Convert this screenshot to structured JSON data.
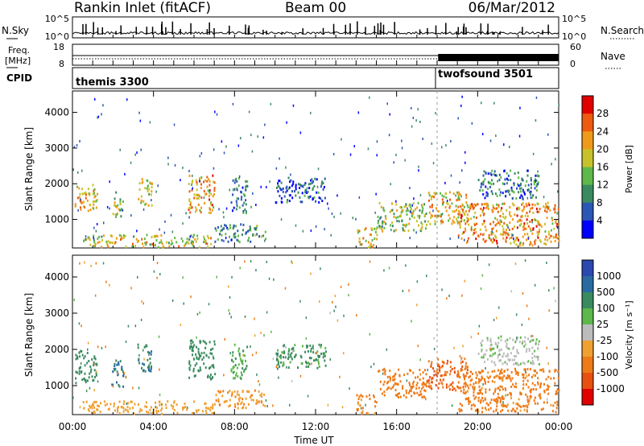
{
  "header": {
    "station": "Rankin Inlet (fitACF)",
    "beam": "Beam 00",
    "date": "06/Mar/2012"
  },
  "noise_panel": {
    "left_label": "N.Sky",
    "right_label": "N.Search",
    "left_ticks": [
      "10^5",
      "10^0"
    ],
    "right_ticks": [
      "10^5",
      "10^0"
    ]
  },
  "freq_panel": {
    "left_label_line1": "Freq.",
    "left_label_line2": "[MHz]",
    "right_label": "Nave",
    "left_ticks": [
      "18",
      "8"
    ],
    "right_ticks": [
      "60",
      "0"
    ]
  },
  "cpid_panel": {
    "label": "CPID",
    "programs": [
      {
        "name": "themis 3300",
        "start_hour": 0.0
      },
      {
        "name": "twofsound 3501",
        "start_hour": 18.0
      }
    ]
  },
  "colors": {
    "power_scale": [
      "#0000ff",
      "#2a56b5",
      "#3a8a5f",
      "#5fb84a",
      "#c8c22a",
      "#f09a1a",
      "#ee5a10",
      "#e00000"
    ],
    "velocity_scale": [
      "#2a48b0",
      "#2a6aa0",
      "#3a8a5f",
      "#5cb84a",
      "#bcbcbc",
      "#f0a030",
      "#ee7a18",
      "#e85010",
      "#e00000"
    ]
  },
  "chart_data": [
    {
      "type": "heatmap",
      "name": "power",
      "xlabel": "",
      "ylabel": "Slant Range [km]",
      "colorbar_label": "Power [dB]",
      "colorbar_ticks": [
        "28",
        "24",
        "20",
        "16",
        "12",
        "8",
        "4"
      ],
      "y_ticks": [
        "4000",
        "3000",
        "2000",
        "1000"
      ],
      "x_ticks": [
        "00:00",
        "04:00",
        "08:00",
        "12:00",
        "16:00",
        "20:00",
        "00:00"
      ],
      "x_range_hours": [
        0,
        24
      ],
      "y_range_km": [
        200,
        4600
      ],
      "clusters": [
        {
          "t0": 0.1,
          "t1": 1.2,
          "r0": 1200,
          "r1": 2000,
          "v": 20
        },
        {
          "t0": 1.9,
          "t1": 2.5,
          "r0": 1100,
          "r1": 1800,
          "v": 14
        },
        {
          "t0": 3.2,
          "t1": 3.9,
          "r0": 1400,
          "r1": 2200,
          "v": 18
        },
        {
          "t0": 5.7,
          "t1": 7.0,
          "r0": 1200,
          "r1": 2300,
          "v": 22
        },
        {
          "t0": 7.8,
          "t1": 8.6,
          "r0": 1200,
          "r1": 2200,
          "v": 8
        },
        {
          "t0": 10.0,
          "t1": 12.5,
          "r0": 1500,
          "r1": 2200,
          "v": 6
        },
        {
          "t0": 0.5,
          "t1": 7.0,
          "r0": 250,
          "r1": 600,
          "v": 18
        },
        {
          "t0": 7.0,
          "t1": 9.5,
          "r0": 400,
          "r1": 900,
          "v": 10
        },
        {
          "t0": 14.0,
          "t1": 15.0,
          "r0": 250,
          "r1": 800,
          "v": 20
        },
        {
          "t0": 15.0,
          "t1": 17.5,
          "r0": 700,
          "r1": 1500,
          "v": 16
        },
        {
          "t0": 17.5,
          "t1": 19.5,
          "r0": 900,
          "r1": 1800,
          "v": 20
        },
        {
          "t0": 19.0,
          "t1": 24.0,
          "r0": 300,
          "r1": 1500,
          "v": 22
        },
        {
          "t0": 20.0,
          "t1": 23.0,
          "r0": 1600,
          "r1": 2400,
          "v": 8
        }
      ]
    },
    {
      "type": "heatmap",
      "name": "velocity",
      "xlabel": "Time UT",
      "ylabel": "Slant Range [km]",
      "colorbar_label": "Velocity [m s⁻¹]",
      "colorbar_ticks": [
        "1000",
        "500",
        "100",
        "25",
        "-25",
        "-100",
        "-500",
        "-1000"
      ],
      "y_ticks": [
        "4000",
        "3000",
        "2000",
        "1000"
      ],
      "x_ticks": [
        "00:00",
        "04:00",
        "08:00",
        "12:00",
        "16:00",
        "20:00",
        "00:00"
      ],
      "x_range_hours": [
        0,
        24
      ],
      "y_range_km": [
        200,
        4600
      ],
      "clusters": [
        {
          "t0": 0.1,
          "t1": 1.2,
          "r0": 1100,
          "r1": 2000,
          "v": 300
        },
        {
          "t0": 1.9,
          "t1": 2.5,
          "r0": 1000,
          "r1": 1800,
          "v": 500
        },
        {
          "t0": 3.2,
          "t1": 3.9,
          "r0": 1400,
          "r1": 2200,
          "v": 400
        },
        {
          "t0": 5.7,
          "t1": 7.0,
          "r0": 1200,
          "r1": 2300,
          "v": 300
        },
        {
          "t0": 7.8,
          "t1": 8.6,
          "r0": 1200,
          "r1": 2200,
          "v": 80
        },
        {
          "t0": 10.0,
          "t1": 12.5,
          "r0": 1500,
          "r1": 2200,
          "v": 150
        },
        {
          "t0": 0.5,
          "t1": 7.0,
          "r0": 250,
          "r1": 600,
          "v": -60
        },
        {
          "t0": 7.0,
          "t1": 9.5,
          "r0": 400,
          "r1": 900,
          "v": -80
        },
        {
          "t0": 14.0,
          "t1": 15.0,
          "r0": 250,
          "r1": 800,
          "v": -150
        },
        {
          "t0": 15.0,
          "t1": 17.5,
          "r0": 700,
          "r1": 1500,
          "v": -300
        },
        {
          "t0": 17.5,
          "t1": 19.5,
          "r0": 900,
          "r1": 1800,
          "v": -500
        },
        {
          "t0": 19.0,
          "t1": 24.0,
          "r0": 300,
          "r1": 1500,
          "v": -200
        },
        {
          "t0": 20.0,
          "t1": 23.0,
          "r0": 1600,
          "r1": 2400,
          "v": 10
        }
      ]
    }
  ]
}
